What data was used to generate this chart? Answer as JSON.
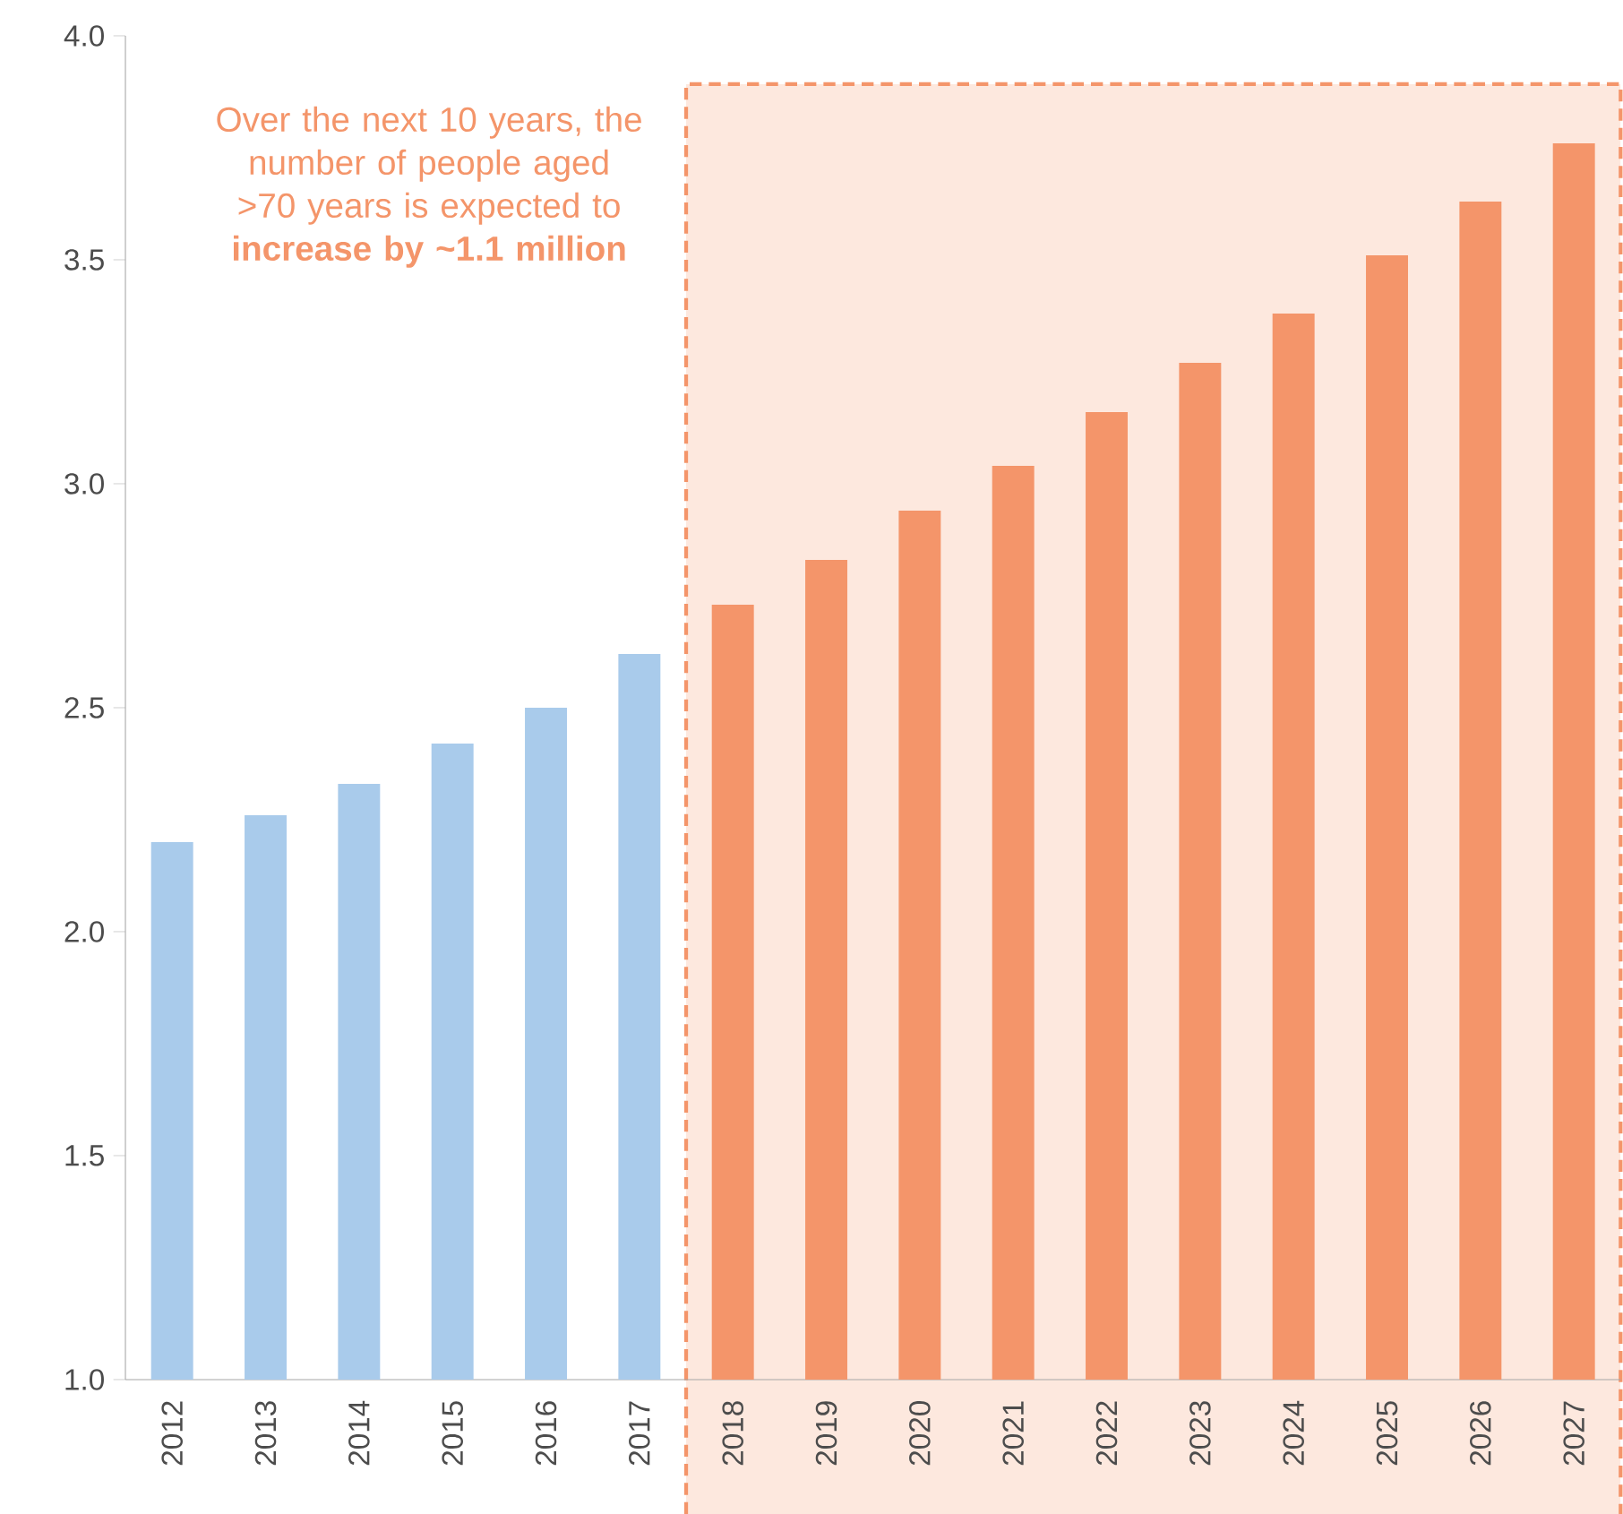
{
  "chart_data": {
    "type": "bar",
    "categories": [
      "2012",
      "2013",
      "2014",
      "2015",
      "2016",
      "2017",
      "2018",
      "2019",
      "2020",
      "2021",
      "2022",
      "2023",
      "2024",
      "2025",
      "2026",
      "2027"
    ],
    "values": [
      2.2,
      2.26,
      2.33,
      2.42,
      2.5,
      2.62,
      2.73,
      2.83,
      2.94,
      3.04,
      3.16,
      3.27,
      3.38,
      3.51,
      3.63,
      3.76
    ],
    "colors": [
      "#a9cbeb",
      "#a9cbeb",
      "#a9cbeb",
      "#a9cbeb",
      "#a9cbeb",
      "#a9cbeb",
      "#f4956a",
      "#f4956a",
      "#f4956a",
      "#f4956a",
      "#f4956a",
      "#f4956a",
      "#f4956a",
      "#f4956a",
      "#f4956a",
      "#f4956a"
    ],
    "ylim": [
      1.0,
      4.0
    ],
    "yticks": [
      {
        "value": 1.0,
        "label": "1.0"
      },
      {
        "value": 1.5,
        "label": "1.5"
      },
      {
        "value": 2.0,
        "label": "2.0"
      },
      {
        "value": 2.5,
        "label": "2.5"
      },
      {
        "value": 3.0,
        "label": "3.0"
      },
      {
        "value": 3.5,
        "label": "3.5"
      },
      {
        "value": 4.0,
        "label": "4.0"
      }
    ],
    "bands": [
      {
        "axis": "x",
        "from": "2018",
        "to": "2027",
        "color": "#fde8de"
      }
    ],
    "annotations": [
      "Over the next 10 years, the number of people aged >70 years is expected to **increase by ~1.1 million**"
    ],
    "grid": false
  }
}
